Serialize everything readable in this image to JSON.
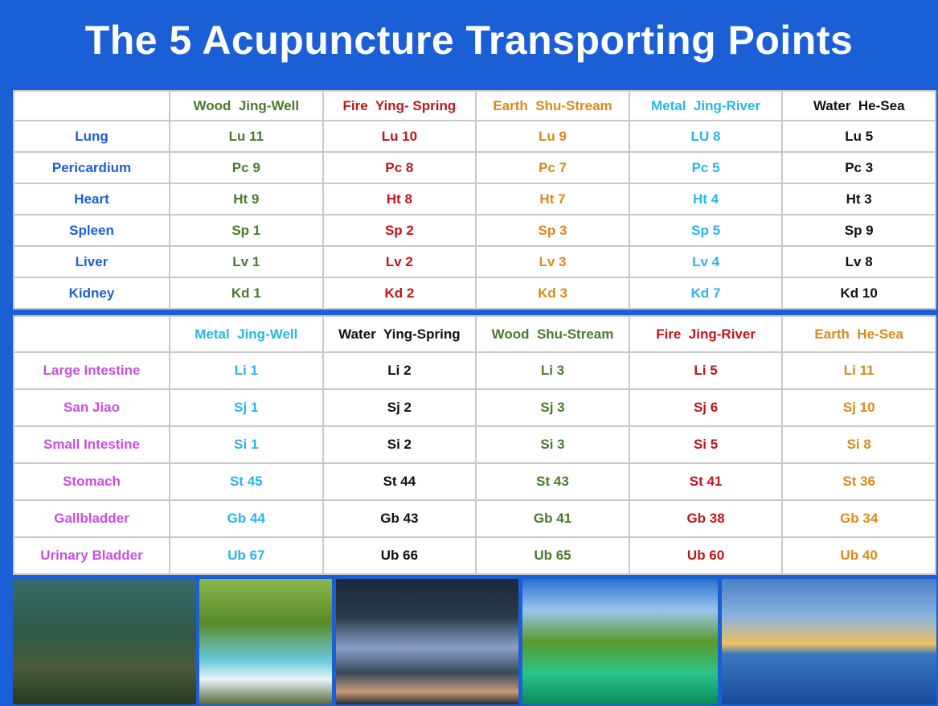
{
  "title": "The 5 Acupuncture Transporting Points",
  "tables": [
    {
      "label_color": "#1a5fd6",
      "column_colors": [
        "#4a7a2a",
        "#c0161c",
        "#d98a1a",
        "#2ab5e8",
        "#111111"
      ],
      "headers": [
        "Wood  Jing-Well",
        "Fire  Ying- Spring",
        "Earth  Shu-Stream",
        "Metal  Jing-River",
        "Water  He-Sea"
      ],
      "rows": [
        [
          "Lung",
          "Lu 11",
          "Lu 10",
          "Lu 9",
          "LU 8",
          "Lu 5"
        ],
        [
          "Pericardium",
          "Pc 9",
          "Pc 8",
          "Pc 7",
          "Pc 5",
          "Pc 3"
        ],
        [
          "Heart",
          "Ht 9",
          "Ht 8",
          "Ht 7",
          "Ht 4",
          "Ht 3"
        ],
        [
          "Spleen",
          "Sp 1",
          "Sp 2",
          "Sp 3",
          "Sp 5",
          "Sp 9"
        ],
        [
          "Liver",
          "Lv 1",
          "Lv 2",
          "Lv 3",
          "Lv 4",
          "Lv 8"
        ],
        [
          "Kidney",
          "Kd 1",
          "Kd 2",
          "Kd 3",
          "Kd 7",
          "Kd 10"
        ]
      ]
    },
    {
      "label_color": "#c84fe0",
      "column_colors": [
        "#2ab5e8",
        "#111111",
        "#4a7a2a",
        "#c0161c",
        "#d98a1a"
      ],
      "headers": [
        "Metal  Jing-Well",
        "Water  Ying-Spring",
        "Wood  Shu-Stream",
        "Fire  Jing-River",
        "Earth  He-Sea"
      ],
      "rows": [
        [
          "Large Intestine",
          "Li 1",
          "Li 2",
          "Li 3",
          "Li 5",
          "Li 11"
        ],
        [
          "San Jiao",
          "Sj 1",
          "Sj 2",
          "Sj 3",
          "Sj 6",
          "Sj 10"
        ],
        [
          "Small Intestine",
          "Si 1",
          "Si 2",
          "Si 3",
          "Si 5",
          "Si 8"
        ],
        [
          "Stomach",
          "St 45",
          "St 44",
          "St 43",
          "St 41",
          "St 36"
        ],
        [
          "Gallbladder",
          "Gb 44",
          "Gb 43",
          "Gb 41",
          "Gb 38",
          "Gb 34"
        ],
        [
          "Urinary Bladder",
          "Ub 67",
          "Ub 66",
          "Ub 65",
          "Ub 60",
          "Ub 40"
        ]
      ]
    }
  ]
}
